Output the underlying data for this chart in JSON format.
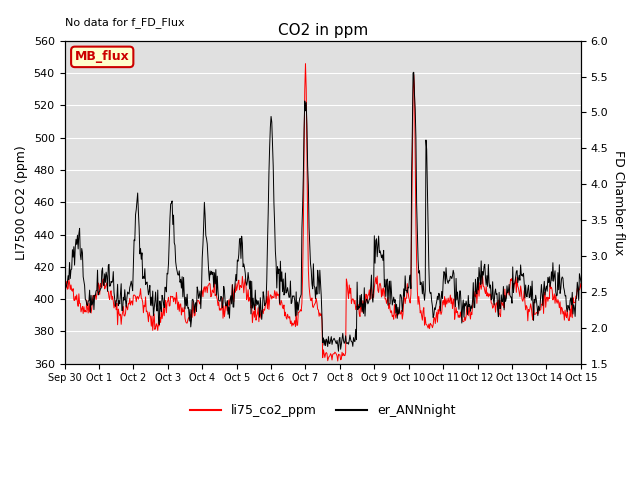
{
  "title": "CO2 in ppm",
  "ylabel_left": "LI7500 CO2 (ppm)",
  "ylabel_right": "FD Chamber flux",
  "annotation_top_left": "No data for f_FD_Flux",
  "legend_box_label": "MB_flux",
  "ylim_left": [
    360,
    560
  ],
  "ylim_right": [
    1.5,
    6.0
  ],
  "yticks_left": [
    360,
    380,
    400,
    420,
    440,
    460,
    480,
    500,
    520,
    540,
    560
  ],
  "yticks_right": [
    1.5,
    2.0,
    2.5,
    3.0,
    3.5,
    4.0,
    4.5,
    5.0,
    5.5,
    6.0
  ],
  "xtick_labels": [
    "Sep 30",
    "Oct 1",
    "Oct 2",
    "Oct 3",
    "Oct 4",
    "Oct 5",
    "Oct 6",
    "Oct 7",
    "Oct 8",
    "Oct 9",
    "Oct 10",
    "Oct 11",
    "Oct 12",
    "Oct 13",
    "Oct 14",
    "Oct 15"
  ],
  "line1_color": "#ff0000",
  "line2_color": "#000000",
  "line1_label": "li75_co2_ppm",
  "line2_label": "er_ANNnight",
  "background_color": "#e0e0e0",
  "legend_box_facecolor": "#ffffcc",
  "legend_box_edgecolor": "#cc0000",
  "title_fontsize": 11,
  "axis_label_fontsize": 9,
  "tick_fontsize": 8
}
